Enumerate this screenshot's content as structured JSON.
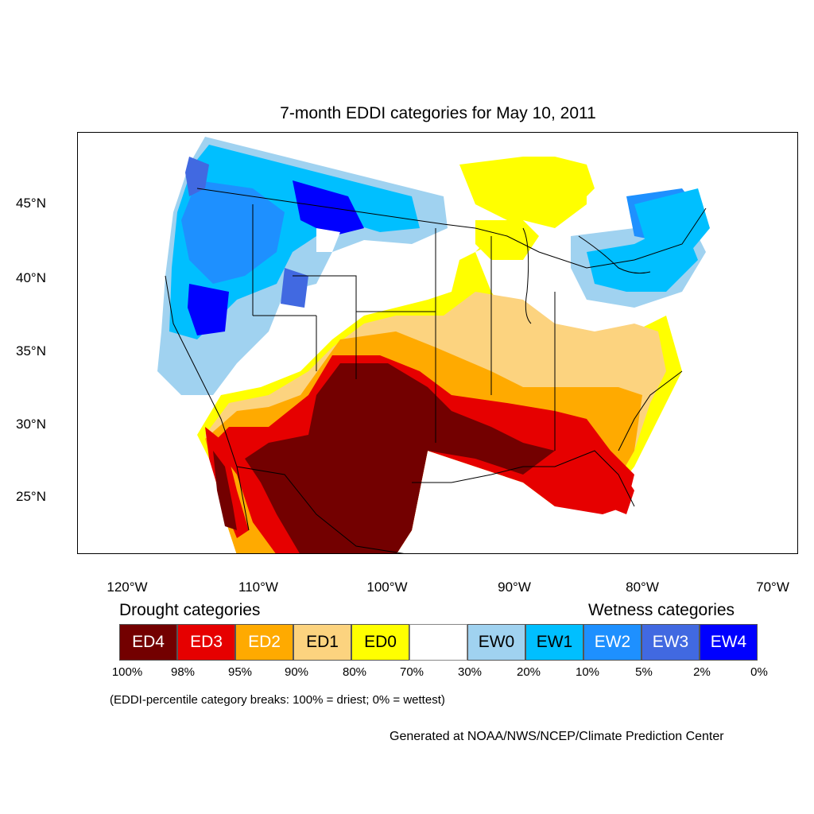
{
  "map": {
    "title": "7-month EDDI categories for May 10, 2011",
    "lat_labels": [
      "45°N",
      "40°N",
      "35°N",
      "30°N",
      "25°N"
    ],
    "lon_labels": [
      "120°W",
      "110°W",
      "100°W",
      "90°W",
      "80°W",
      "70°W"
    ]
  },
  "legend": {
    "drought_heading": "Drought categories",
    "wetness_heading": "Wetness categories",
    "categories": [
      {
        "label": "ED4",
        "color": "#730000",
        "text_color": "#ffffff"
      },
      {
        "label": "ED3",
        "color": "#e60000",
        "text_color": "#ffffff"
      },
      {
        "label": "ED2",
        "color": "#ffaa00",
        "text_color": "#ffffff"
      },
      {
        "label": "ED1",
        "color": "#fcd37f",
        "text_color": "#000000"
      },
      {
        "label": "ED0",
        "color": "#ffff00",
        "text_color": "#000000"
      },
      {
        "label": "",
        "color": "#ffffff",
        "text_color": "#000000"
      },
      {
        "label": "EW0",
        "color": "#a0d2f0",
        "text_color": "#000000"
      },
      {
        "label": "EW1",
        "color": "#00bfff",
        "text_color": "#000000"
      },
      {
        "label": "EW2",
        "color": "#1e90ff",
        "text_color": "#ffffff"
      },
      {
        "label": "EW3",
        "color": "#4169e1",
        "text_color": "#ffffff"
      },
      {
        "label": "EW4",
        "color": "#0000ff",
        "text_color": "#ffffff"
      }
    ],
    "percentiles": [
      "100%",
      "98%",
      "95%",
      "90%",
      "80%",
      "70%",
      "30%",
      "20%",
      "10%",
      "5%",
      "2%",
      "0%"
    ],
    "note": "(EDDI-percentile category breaks: 100% = driest; 0% = wettest)"
  },
  "credit": "Generated at NOAA/NWS/NCEP/Climate Prediction Center"
}
